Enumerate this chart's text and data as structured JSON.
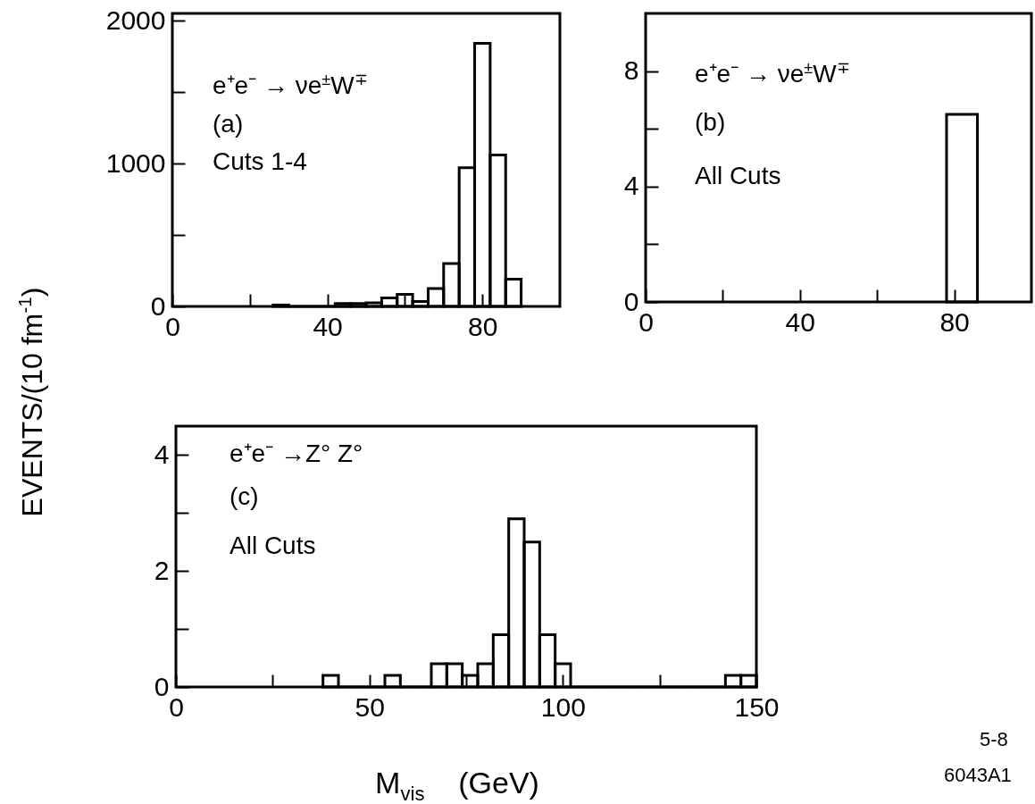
{
  "chart_data": [
    {
      "type": "histogram",
      "ylabel": "EVENTS/(10 fm$^{-1}$)",
      "color": "#000000",
      "bins": [
        26,
        30,
        34,
        38,
        42,
        46,
        50,
        54,
        58,
        62,
        66,
        70,
        74,
        78,
        82,
        86,
        90
      ],
      "values": [
        10,
        0,
        0,
        0,
        20,
        20,
        25,
        60,
        85,
        35,
        125,
        300,
        970,
        1840,
        1060,
        190
      ],
      "xlim": [
        0,
        100
      ],
      "xticks": [
        0,
        {
          "value": 20,
          "label": null
        },
        40,
        {
          "value": 60,
          "label": null
        },
        80
      ],
      "ylim": [
        0,
        2050
      ],
      "yticks": [
        0,
        {
          "value": 500,
          "label": null
        },
        1000,
        {
          "value": 1500,
          "label": null
        },
        2000
      ],
      "annotations": [
        "e⁺e⁻ → νe$^{±}$W$^{∓}$",
        "(a)",
        "Cuts 1-4"
      ]
    },
    {
      "type": "histogram",
      "color": "#000000",
      "bins": [
        78,
        86
      ],
      "values": [
        6.5
      ],
      "xlim": [
        0,
        100
      ],
      "xticks": [
        0,
        {
          "value": 20,
          "label": null
        },
        40,
        {
          "value": 60,
          "label": null
        },
        80
      ],
      "ylim": [
        0,
        10
      ],
      "yticks": [
        0,
        {
          "value": 2,
          "label": null
        },
        4,
        {
          "value": 6,
          "label": null
        },
        8
      ],
      "annotations": [
        "e⁺e⁻ → νe$^{±}$W$^{∓}$",
        "(b)",
        "All Cuts"
      ]
    },
    {
      "type": "histogram",
      "xlabel": "M$_{vis}$    (GeV)",
      "color": "#000000",
      "bins": [
        38,
        42,
        46,
        50,
        54,
        58,
        62,
        66,
        70,
        74,
        78,
        82,
        86,
        90,
        94,
        98,
        102,
        106,
        110,
        114,
        118,
        122,
        126,
        130,
        134,
        138,
        142,
        146,
        150
      ],
      "values": [
        0.2,
        0,
        0,
        0,
        0.2,
        0,
        0,
        0.4,
        0.4,
        0.2,
        0.4,
        0.9,
        2.9,
        2.5,
        0.9,
        0.4,
        0,
        0,
        0,
        0,
        0,
        0,
        0,
        0,
        0,
        0,
        0.2,
        0.2
      ],
      "xlim": [
        0,
        150
      ],
      "xticks": [
        0,
        {
          "value": 25,
          "label": null
        },
        50,
        {
          "value": 75,
          "label": null
        },
        100,
        {
          "value": 125,
          "label": null
        },
        150
      ],
      "ylim": [
        0,
        4.5
      ],
      "yticks": [
        0,
        {
          "value": 1,
          "label": null
        },
        2,
        {
          "value": 3,
          "label": null
        },
        4
      ],
      "annotations": [
        "e⁺e⁻ →Z° Z°",
        "(c)",
        "All Cuts",
        "5-8",
        "6043A1"
      ]
    }
  ]
}
